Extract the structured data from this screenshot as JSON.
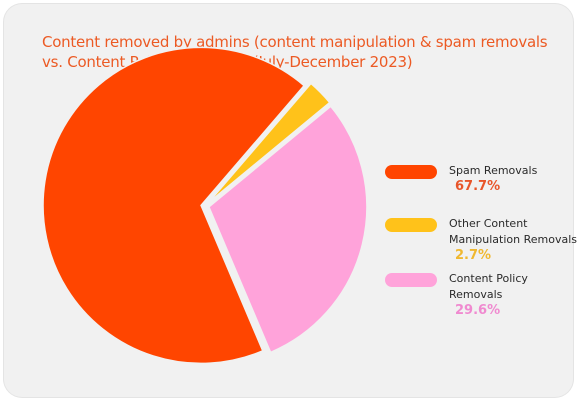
{
  "chart_data": {
    "type": "pie",
    "title_lines": [
      "Content removed by admins (content manipulation & spam removals",
      "vs. Content Policy removals) (July-December 2023)"
    ],
    "slices": [
      {
        "label": "Spam Removals",
        "label_lines": [
          "Spam Removals"
        ],
        "value": 67.7,
        "display": "67.7%",
        "color": "#ff4500",
        "text_color": "#e8552a"
      },
      {
        "label": "Other Content Manipulation Removals",
        "label_lines": [
          "Other Content",
          "Manipulation Removals"
        ],
        "value": 2.7,
        "display": "2.7%",
        "color": "#ffc21a",
        "text_color": "#f0b830"
      },
      {
        "label": "Content Policy Removals",
        "label_lines": [
          "Content Policy",
          "Removals"
        ],
        "value": 29.6,
        "display": "29.6%",
        "color": "#ffa3da",
        "text_color": "#f08ad0"
      }
    ],
    "legend_position": "right"
  }
}
